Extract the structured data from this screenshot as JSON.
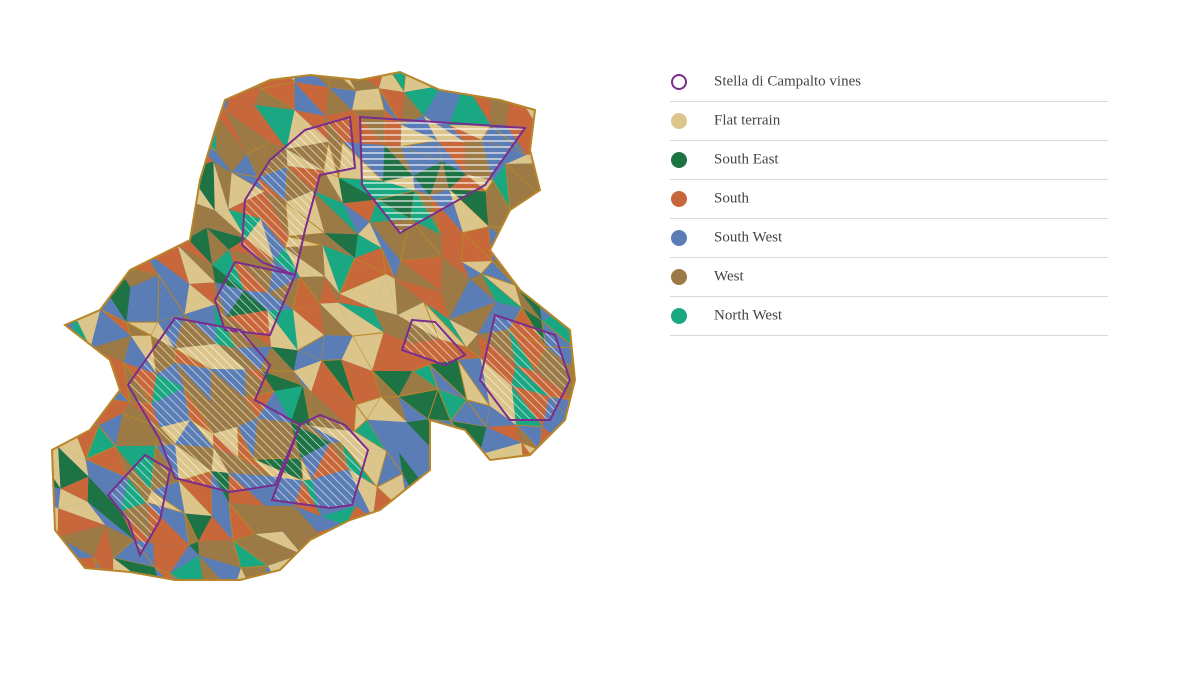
{
  "legend": {
    "items": [
      {
        "label": "Stella di Campalto vines",
        "color": "#7b2d8e",
        "hollow": true
      },
      {
        "label": "Flat terrain",
        "color": "#dcc58a"
      },
      {
        "label": "South East",
        "color": "#1e7345"
      },
      {
        "label": "South",
        "color": "#c8683a"
      },
      {
        "label": "South West",
        "color": "#5b7db5"
      },
      {
        "label": "West",
        "color": "#9b7a45"
      },
      {
        "label": "North West",
        "color": "#1aa882"
      }
    ]
  }
}
